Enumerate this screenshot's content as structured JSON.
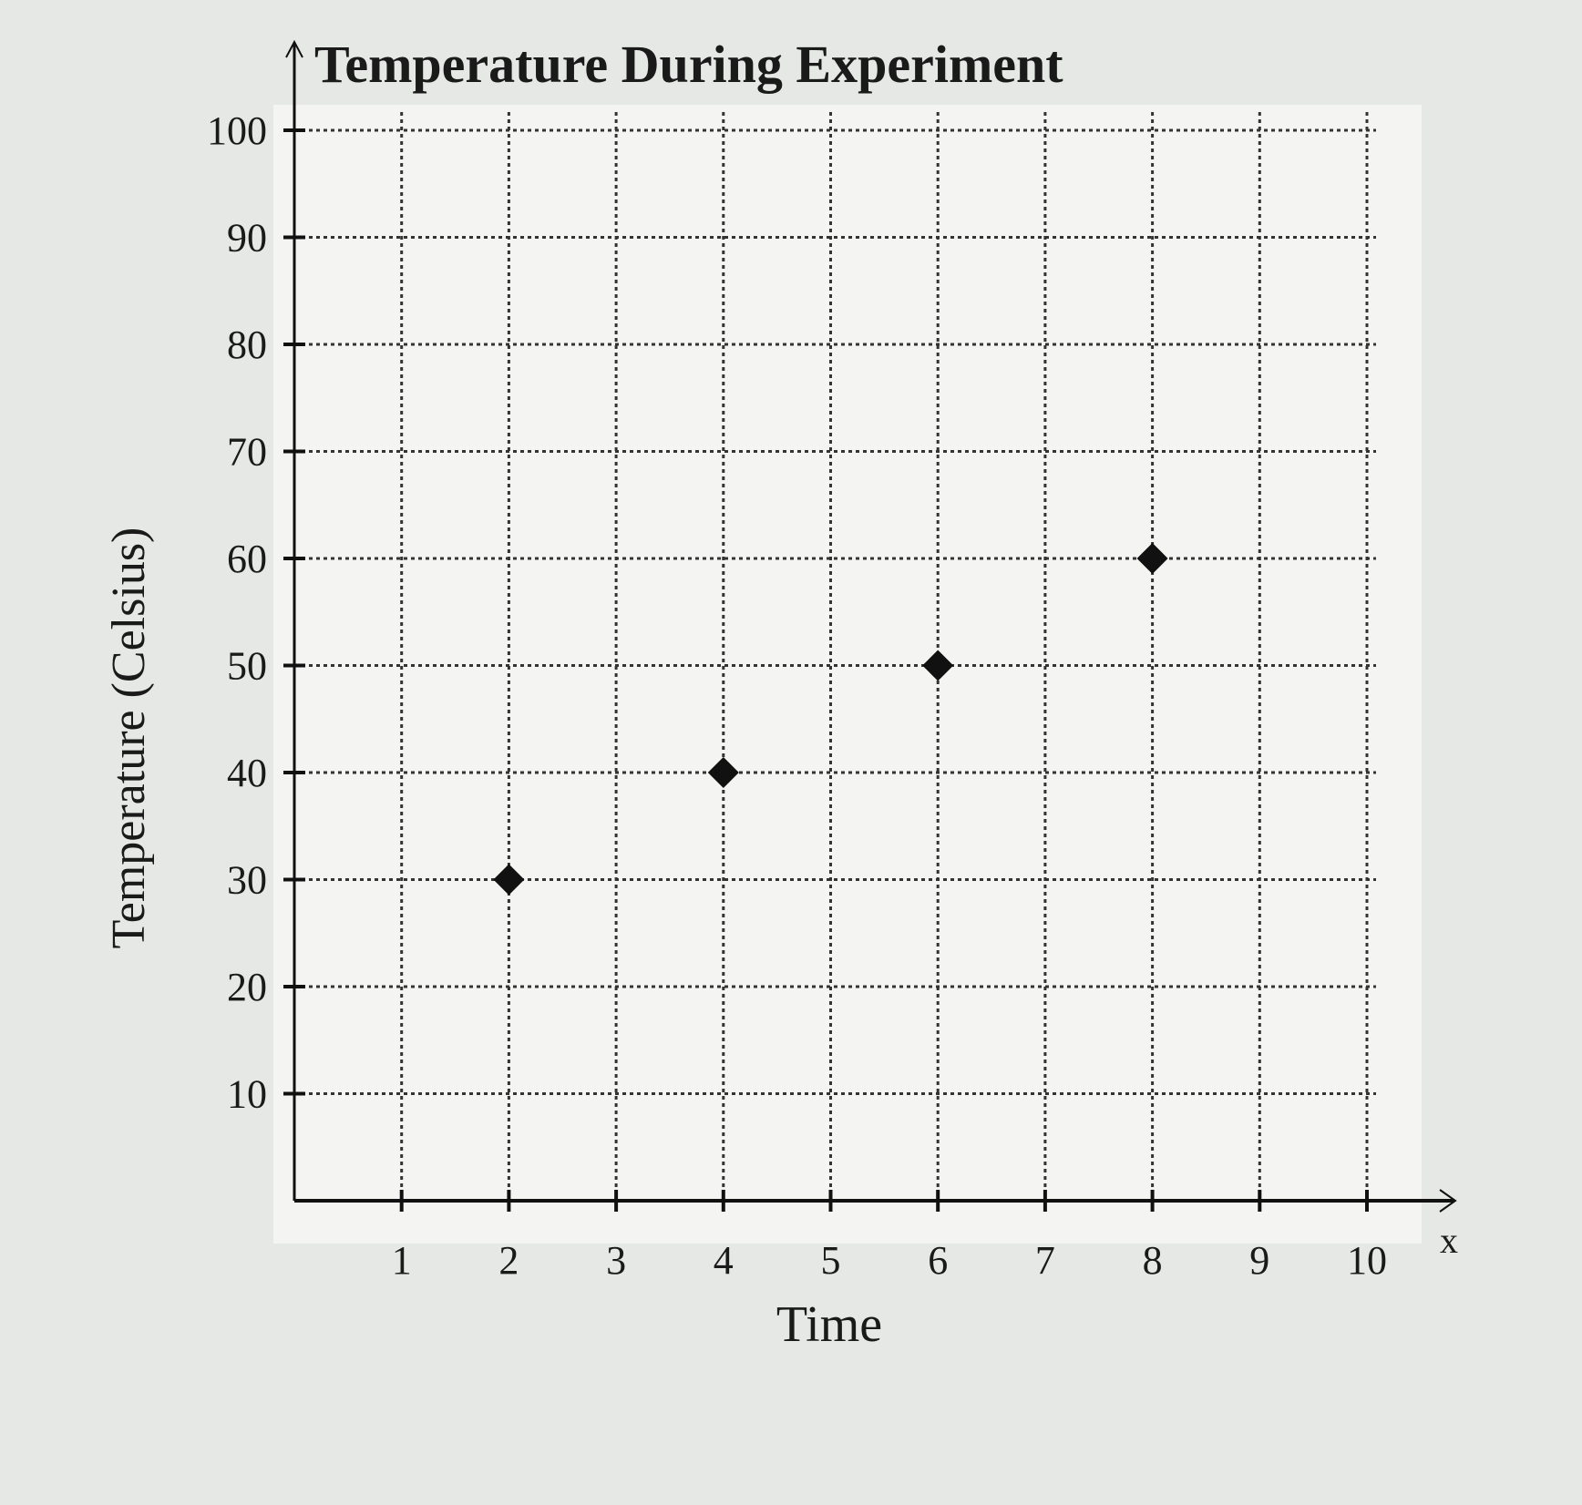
{
  "chart_data": {
    "type": "scatter",
    "title": "Temperature During Experiment",
    "xlabel": "Time",
    "ylabel": "Temperature (Celsius)",
    "x_axis_letter": "x",
    "xlim": [
      0,
      10
    ],
    "ylim": [
      0,
      100
    ],
    "xticks": [
      1,
      2,
      3,
      4,
      5,
      6,
      7,
      8,
      9,
      10
    ],
    "yticks": [
      10,
      20,
      30,
      40,
      50,
      60,
      70,
      80,
      90,
      100
    ],
    "grid": true,
    "points": [
      {
        "x": 2,
        "y": 30
      },
      {
        "x": 4,
        "y": 40
      },
      {
        "x": 6,
        "y": 50
      },
      {
        "x": 8,
        "y": 60
      }
    ],
    "marker_color": "#111111"
  }
}
